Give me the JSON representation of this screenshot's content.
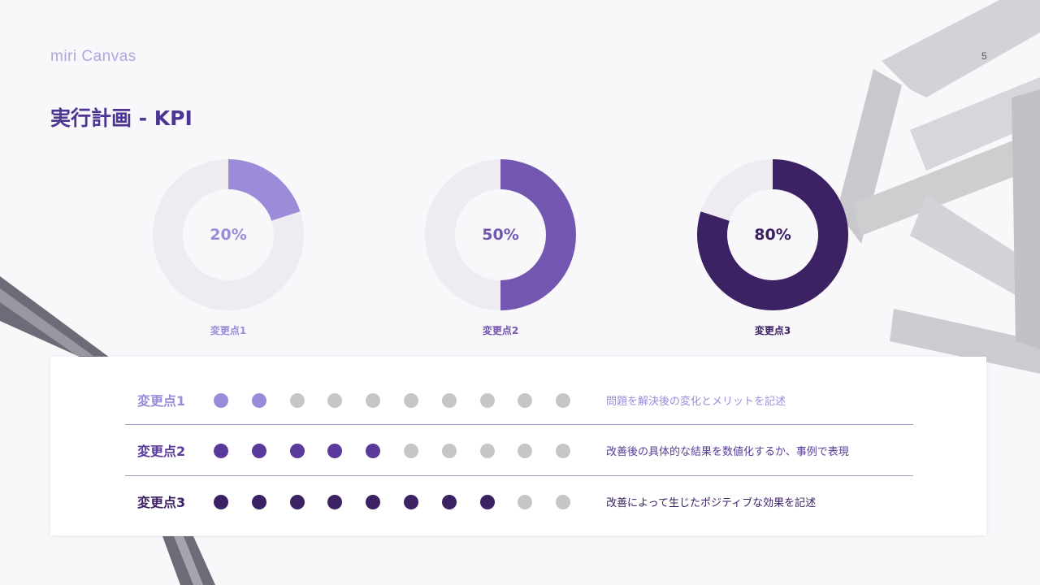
{
  "brand": {
    "logo_text": "miri Canvas"
  },
  "page": {
    "number": "5",
    "title": "実行計画 - KPI"
  },
  "chart_data": [
    {
      "type": "pie",
      "subtype": "donut",
      "caption": "変更点1",
      "center_label": "20%",
      "values": [
        20,
        80
      ],
      "colors": [
        "#9b8bd9",
        "#eeecf2"
      ]
    },
    {
      "type": "pie",
      "subtype": "donut",
      "caption": "変更点2",
      "center_label": "50%",
      "values": [
        50,
        50
      ],
      "colors": [
        "#7356b0",
        "#eeecf2"
      ]
    },
    {
      "type": "pie",
      "subtype": "donut",
      "caption": "変更点3",
      "center_label": "80%",
      "values": [
        80,
        20
      ],
      "colors": [
        "#3c2163",
        "#eeecf2"
      ]
    }
  ],
  "kpi_table": {
    "max_dots": 10,
    "inactive_color": "#c6c6c8",
    "rows": [
      {
        "label": "変更点1",
        "filled": 2,
        "color": "#9b8bd9",
        "description": "問題を解決後の変化とメリットを記述"
      },
      {
        "label": "変更点2",
        "filled": 5,
        "color": "#5a3a9a",
        "description": "改善後の具体的な結果を数値化するか、事例で表現"
      },
      {
        "label": "変更点3",
        "filled": 8,
        "color": "#3c2163",
        "description": "改善によって生じたポジティブな効果を記述"
      }
    ]
  }
}
